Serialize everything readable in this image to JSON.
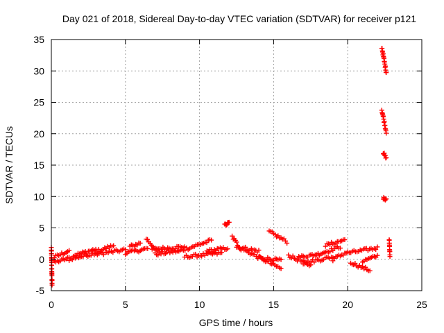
{
  "chart_data": {
    "type": "scatter",
    "title": "Day 021 of 2018, Sidereal Day-to-day VTEC variation (SDTVAR) for receiver p121",
    "xlabel": "GPS time / hours",
    "ylabel": "SDTVAR / TECUs",
    "xlim": [
      0,
      25
    ],
    "ylim": [
      -5,
      35
    ],
    "xticks": [
      0,
      5,
      10,
      15,
      20,
      25
    ],
    "yticks": [
      -5,
      0,
      5,
      10,
      15,
      20,
      25,
      30,
      35
    ],
    "grid": true,
    "marker": "+",
    "color": "#ff0000",
    "series": [
      {
        "name": "SDTVAR",
        "segments": [
          {
            "x0": 0.0,
            "x1": 0.05,
            "y0": 1.8,
            "y1": -4.0
          },
          {
            "x0": 0.2,
            "x1": 1.2,
            "y0": 0.3,
            "y1": 1.4
          },
          {
            "x0": 0.2,
            "x1": 1.2,
            "y0": -0.5,
            "y1": 0.2
          },
          {
            "x0": 1.2,
            "x1": 3.0,
            "y0": 0.0,
            "y1": 1.0
          },
          {
            "x0": 1.5,
            "x1": 3.0,
            "y0": 0.6,
            "y1": 1.6
          },
          {
            "x0": 3.0,
            "x1": 5.0,
            "y0": 0.8,
            "y1": 1.5
          },
          {
            "x0": 3.0,
            "x1": 4.2,
            "y0": 1.2,
            "y1": 2.2
          },
          {
            "x0": 5.0,
            "x1": 6.5,
            "y0": 1.0,
            "y1": 1.7
          },
          {
            "x0": 5.3,
            "x1": 6.0,
            "y0": 2.0,
            "y1": 2.6
          },
          {
            "x0": 6.4,
            "x1": 7.2,
            "y0": 3.3,
            "y1": 1.2
          },
          {
            "x0": 6.8,
            "x1": 9.0,
            "y0": 1.6,
            "y1": 2.0
          },
          {
            "x0": 7.0,
            "x1": 8.5,
            "y0": 0.8,
            "y1": 1.3
          },
          {
            "x0": 8.5,
            "x1": 10.8,
            "y0": 1.2,
            "y1": 3.0
          },
          {
            "x0": 9.0,
            "x1": 11.5,
            "y0": 0.4,
            "y1": 1.0
          },
          {
            "x0": 10.5,
            "x1": 11.9,
            "y0": 1.3,
            "y1": 1.8
          },
          {
            "x0": 11.7,
            "x1": 12.0,
            "y0": 5.4,
            "y1": 5.8
          },
          {
            "x0": 12.2,
            "x1": 12.8,
            "y0": 3.6,
            "y1": 1.6
          },
          {
            "x0": 12.5,
            "x1": 14.0,
            "y0": 2.0,
            "y1": 1.3
          },
          {
            "x0": 13.0,
            "x1": 15.5,
            "y0": 1.5,
            "y1": -1.5
          },
          {
            "x0": 14.0,
            "x1": 15.5,
            "y0": 0.3,
            "y1": -0.2
          },
          {
            "x0": 14.7,
            "x1": 15.9,
            "y0": 4.4,
            "y1": 2.8
          },
          {
            "x0": 16.0,
            "x1": 17.5,
            "y0": 0.6,
            "y1": -1.0
          },
          {
            "x0": 16.5,
            "x1": 18.0,
            "y0": 0.2,
            "y1": 0.9
          },
          {
            "x0": 17.0,
            "x1": 19.0,
            "y0": -0.6,
            "y1": 0.4
          },
          {
            "x0": 18.0,
            "x1": 19.5,
            "y0": 0.8,
            "y1": 2.0
          },
          {
            "x0": 18.5,
            "x1": 19.8,
            "y0": 2.2,
            "y1": 3.1
          },
          {
            "x0": 19.0,
            "x1": 20.0,
            "y0": 0.0,
            "y1": 1.2
          },
          {
            "x0": 20.0,
            "x1": 22.0,
            "y0": 1.0,
            "y1": 1.8
          },
          {
            "x0": 20.2,
            "x1": 21.5,
            "y0": -0.5,
            "y1": -1.8
          },
          {
            "x0": 21.0,
            "x1": 22.0,
            "y0": -0.3,
            "y1": 0.5
          },
          {
            "x0": 22.3,
            "x1": 22.6,
            "y0": 33.8,
            "y1": 29.8
          },
          {
            "x0": 22.3,
            "x1": 22.6,
            "y0": 23.8,
            "y1": 20.3
          },
          {
            "x0": 22.4,
            "x1": 22.6,
            "y0": 17.0,
            "y1": 16.0
          },
          {
            "x0": 22.4,
            "x1": 22.6,
            "y0": 9.8,
            "y1": 9.4
          },
          {
            "x0": 22.8,
            "x1": 22.85,
            "y0": 3.2,
            "y1": 0.6
          }
        ]
      }
    ]
  }
}
